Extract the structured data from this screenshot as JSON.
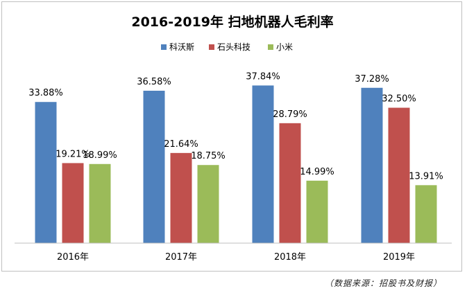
{
  "chart_data": {
    "type": "bar",
    "title": "2016-2019年 扫地机器人毛利率",
    "categories": [
      "2016年",
      "2017年",
      "2018年",
      "2019年"
    ],
    "series": [
      {
        "name": "科沃斯",
        "color": "#4f81bd",
        "values": [
          33.88,
          36.58,
          37.84,
          37.28
        ],
        "labels": [
          "33.88%",
          "36.58%",
          "37.84%",
          "37.28%"
        ]
      },
      {
        "name": "石头科技",
        "color": "#c0504d",
        "values": [
          19.21,
          21.64,
          28.79,
          32.5
        ],
        "labels": [
          "19.21%",
          "21.64%",
          "28.79%",
          "32.50%"
        ]
      },
      {
        "name": "小米",
        "color": "#9bbb59",
        "values": [
          18.99,
          18.75,
          14.99,
          13.91
        ],
        "labels": [
          "18.99%",
          "18.75%",
          "14.99%",
          "13.91%"
        ]
      }
    ],
    "ylim": [
      0,
      40
    ],
    "grid": false,
    "legend_position": "top"
  },
  "source_note": "（数据来源：招股书及财报）"
}
